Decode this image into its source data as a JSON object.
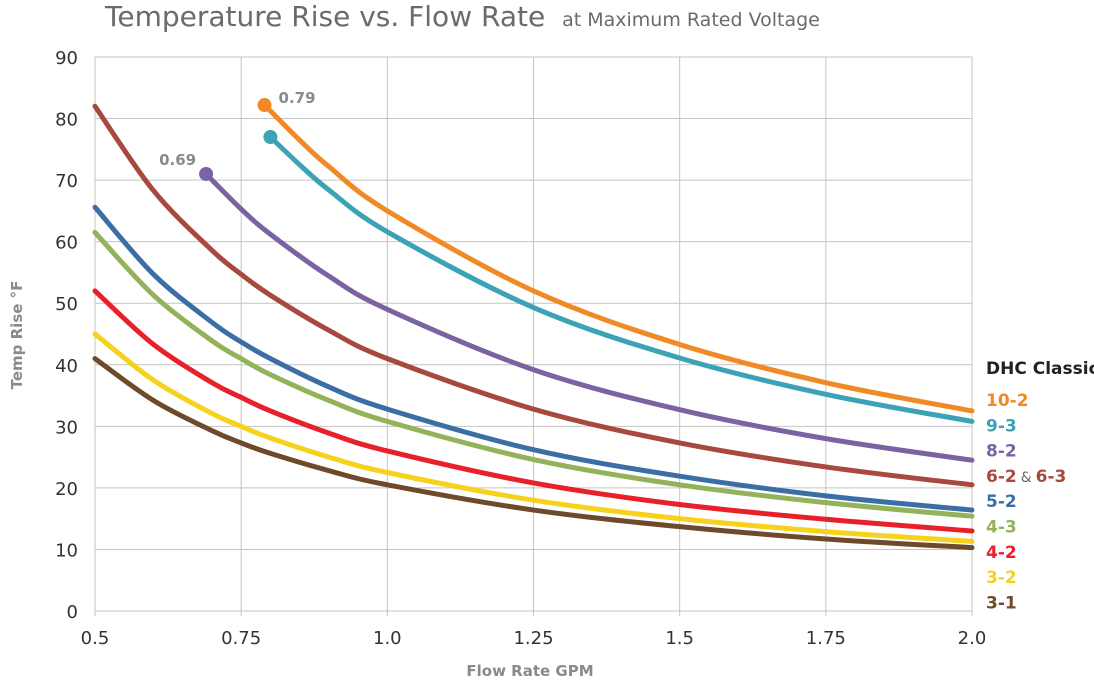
{
  "chart_data": {
    "type": "line",
    "title": "Temperature Rise vs. Flow Rate",
    "subtitle": "at Maximum Rated Voltage",
    "xlabel": "Flow Rate GPM",
    "ylabel": "Temp Rise °F",
    "xlim": [
      0.5,
      2.0
    ],
    "ylim": [
      0,
      90
    ],
    "x_ticks": [
      "0.5",
      "0.75",
      "1.0",
      "1.25",
      "1.5",
      "1.75",
      "2.0"
    ],
    "x_tick_values": [
      0.5,
      0.75,
      1.0,
      1.25,
      1.5,
      1.75,
      2.0
    ],
    "y_ticks": [
      "0",
      "10",
      "20",
      "30",
      "40",
      "50",
      "60",
      "70",
      "80",
      "90"
    ],
    "y_tick_values": [
      0,
      10,
      20,
      30,
      40,
      50,
      60,
      70,
      80,
      90
    ],
    "grid": true,
    "legend_title": "DHC Classic",
    "legend_position": "right",
    "series": [
      {
        "name": "10-2",
        "color": "#F08A24",
        "x": [
          0.79,
          0.85,
          0.9,
          1.0,
          1.25,
          1.5,
          1.75,
          2.0
        ],
        "y": [
          82.2,
          76.5,
          72.2,
          65.0,
          52.0,
          43.3,
          37.1,
          32.5
        ],
        "start_marker": true
      },
      {
        "name": "9-3",
        "color": "#3CA2B5",
        "x": [
          0.8,
          0.85,
          0.9,
          1.0,
          1.25,
          1.5,
          1.75,
          2.0
        ],
        "y": [
          77.0,
          72.5,
          68.4,
          61.6,
          49.3,
          41.1,
          35.2,
          30.8
        ],
        "start_marker": true
      },
      {
        "name": "8-2",
        "color": "#7B62A0",
        "x": [
          0.69,
          0.75,
          0.8,
          0.9,
          1.0,
          1.25,
          1.5,
          1.75,
          2.0
        ],
        "y": [
          71.0,
          65.3,
          61.2,
          54.4,
          49.0,
          39.2,
          32.7,
          28.0,
          24.5
        ],
        "start_marker": true
      },
      {
        "name": "6-2 & 6-3",
        "color": "#A8493F",
        "x": [
          0.5,
          0.6,
          0.7,
          0.75,
          0.8,
          0.9,
          1.0,
          1.25,
          1.5,
          1.75,
          2.0
        ],
        "y": [
          82.0,
          68.3,
          58.6,
          54.7,
          51.3,
          45.6,
          41.0,
          32.8,
          27.3,
          23.4,
          20.5
        ],
        "start_marker": false
      },
      {
        "name": "5-2",
        "color": "#3A6EA5",
        "x": [
          0.5,
          0.6,
          0.7,
          0.75,
          0.8,
          0.9,
          1.0,
          1.25,
          1.5,
          1.75,
          2.0
        ],
        "y": [
          65.6,
          54.7,
          46.9,
          43.7,
          41.0,
          36.4,
          32.8,
          26.2,
          21.9,
          18.7,
          16.4
        ],
        "start_marker": false
      },
      {
        "name": "4-3",
        "color": "#93B35A",
        "x": [
          0.5,
          0.6,
          0.7,
          0.75,
          0.8,
          0.9,
          1.0,
          1.25,
          1.5,
          1.75,
          2.0
        ],
        "y": [
          61.5,
          51.3,
          43.9,
          41.0,
          38.4,
          34.2,
          30.8,
          24.6,
          20.5,
          17.6,
          15.4
        ],
        "start_marker": false
      },
      {
        "name": "4-2",
        "color": "#E8202A",
        "x": [
          0.5,
          0.6,
          0.7,
          0.75,
          0.8,
          0.9,
          1.0,
          1.25,
          1.5,
          1.75,
          2.0
        ],
        "y": [
          52.0,
          43.3,
          37.1,
          34.7,
          32.5,
          28.9,
          26.0,
          20.8,
          17.3,
          14.9,
          13.0
        ],
        "start_marker": false
      },
      {
        "name": "3-2",
        "color": "#F7D21C",
        "x": [
          0.5,
          0.6,
          0.7,
          0.75,
          0.8,
          0.9,
          1.0,
          1.25,
          1.5,
          1.75,
          2.0
        ],
        "y": [
          45.0,
          37.5,
          32.1,
          30.0,
          28.1,
          25.0,
          22.5,
          18.0,
          15.0,
          12.9,
          11.3
        ],
        "start_marker": false
      },
      {
        "name": "3-1",
        "color": "#6E4A2A",
        "x": [
          0.5,
          0.6,
          0.7,
          0.75,
          0.8,
          0.9,
          1.0,
          1.25,
          1.5,
          1.75,
          2.0
        ],
        "y": [
          41.0,
          34.2,
          29.3,
          27.3,
          25.6,
          22.8,
          20.5,
          16.4,
          13.7,
          11.7,
          10.3
        ],
        "start_marker": false
      }
    ],
    "legend": {
      "items": [
        {
          "parts": [
            {
              "text": "10-2",
              "color": "#F08A24"
            }
          ]
        },
        {
          "parts": [
            {
              "text": "9-3",
              "color": "#3CA2B5"
            }
          ]
        },
        {
          "parts": [
            {
              "text": "8-2",
              "color": "#7B62A0"
            }
          ]
        },
        {
          "parts": [
            {
              "text": "6-2",
              "color": "#A8493F"
            },
            {
              "text": "&",
              "color": "#666666",
              "amp": true
            },
            {
              "text": "6-3",
              "color": "#A8493F"
            }
          ]
        },
        {
          "parts": [
            {
              "text": "5-2",
              "color": "#3A6EA5"
            }
          ]
        },
        {
          "parts": [
            {
              "text": "4-3",
              "color": "#93B35A"
            }
          ]
        },
        {
          "parts": [
            {
              "text": "4-2",
              "color": "#E8202A"
            }
          ]
        },
        {
          "parts": [
            {
              "text": "3-2",
              "color": "#F7D21C"
            }
          ]
        },
        {
          "parts": [
            {
              "text": "3-1",
              "color": "#6E4A2A"
            }
          ]
        }
      ]
    },
    "annotations": [
      {
        "text": "0.79",
        "x": 0.79,
        "y": 82.2,
        "series": "10-2"
      },
      {
        "text": "0.69",
        "x": 0.69,
        "y": 71.0,
        "series": "8-2"
      }
    ]
  }
}
